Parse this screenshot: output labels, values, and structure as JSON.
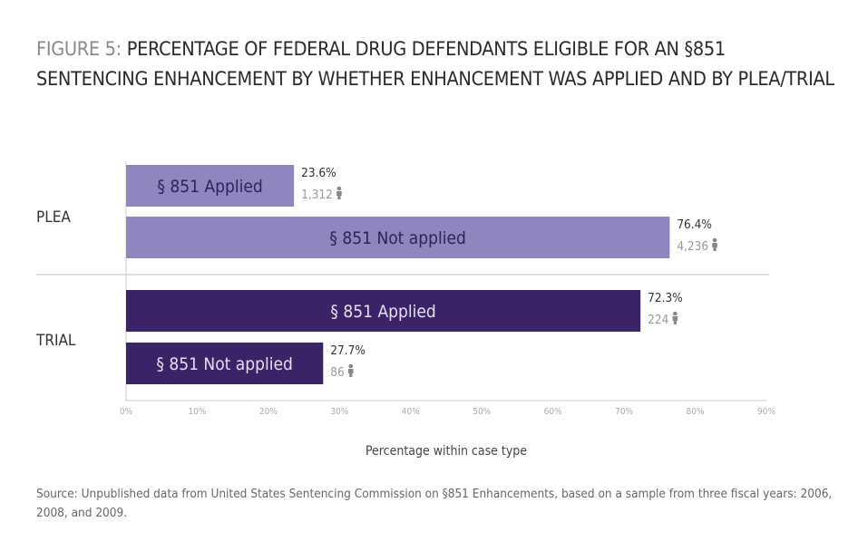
{
  "title_prefix": "FIGURE 5:",
  "title": "PERCENTAGE OF FEDERAL DRUG DEFENDANTS ELIGIBLE FOR AN §851 SENTENCING ENHANCEMENT BY WHETHER ENHANCEMENT WAS APPLIED AND BY PLEA/TRIAL",
  "source": "Source: Unpublished data from United States Sentencing Commission on §851 Enhancements, based on a sample from three fiscal years: 2006, 2008, and 2009.",
  "chart_data": {
    "type": "bar",
    "orientation": "horizontal",
    "xlabel": "Percentage within case type",
    "xlim": [
      0,
      90
    ],
    "ticks": [
      "0%",
      "10%",
      "20%",
      "30%",
      "40%",
      "50%",
      "60%",
      "70%",
      "80%",
      "90%"
    ],
    "groups": [
      {
        "name": "PLEA",
        "color": "#8f86bf",
        "label_color": "#2e2350",
        "bars": [
          {
            "label": "§ 851 Applied",
            "value": 23.6,
            "value_label": "23.6%",
            "count": "1,312"
          },
          {
            "label": "§ 851 Not applied",
            "value": 76.4,
            "value_label": "76.4%",
            "count": "4,236"
          }
        ]
      },
      {
        "name": "TRIAL",
        "color": "#3b2368",
        "label_color": "#e6e0f2",
        "bars": [
          {
            "label": "§ 851 Applied",
            "value": 72.3,
            "value_label": "72.3%",
            "count": "224"
          },
          {
            "label": "§ 851 Not applied",
            "value": 27.7,
            "value_label": "27.7%",
            "count": "86"
          }
        ]
      }
    ],
    "count_icon": "person-icon",
    "grid": false
  }
}
